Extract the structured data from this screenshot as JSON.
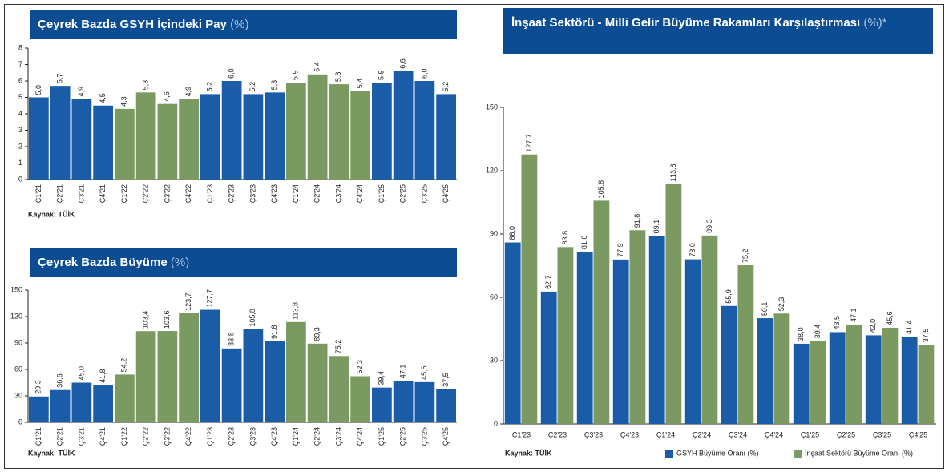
{
  "chart_data": [
    {
      "type": "bar",
      "title": "Çeyrek Bazda GSYH İçindeki Pay",
      "unit": "(%)",
      "categories": [
        "Ç1'21",
        "Ç2'21",
        "Ç3'21",
        "Ç4'21",
        "Ç1'22",
        "Ç2'22",
        "Ç3'22",
        "Ç4'22",
        "Ç1'23",
        "Ç2'23",
        "Ç3'23",
        "Ç4'23",
        "Ç1'24",
        "Ç2'24",
        "Ç3'24",
        "Ç4'24",
        "Ç1'25",
        "Ç2'25",
        "Ç3'25",
        "Ç4'25"
      ],
      "values": [
        5.0,
        5.7,
        4.9,
        4.5,
        4.3,
        5.3,
        4.6,
        4.9,
        5.2,
        6.0,
        5.2,
        5.3,
        5.9,
        6.4,
        5.8,
        5.4,
        5.9,
        6.6,
        6.0,
        5.2
      ],
      "value_labels": [
        "5,0",
        "5,7",
        "4,9",
        "4,5",
        "4,3",
        "5,3",
        "4,6",
        "4,9",
        "5,2",
        "6,0",
        "5,2",
        "5,3",
        "5,9",
        "6,4",
        "5,8",
        "5,4",
        "5,9",
        "6,6",
        "6,0",
        "5,2"
      ],
      "colors": [
        "#1b5ca8",
        "#1b5ca8",
        "#1b5ca8",
        "#1b5ca8",
        "#7a9a62",
        "#7a9a62",
        "#7a9a62",
        "#7a9a62",
        "#1b5ca8",
        "#1b5ca8",
        "#1b5ca8",
        "#1b5ca8",
        "#7a9a62",
        "#7a9a62",
        "#7a9a62",
        "#7a9a62",
        "#1b5ca8",
        "#1b5ca8",
        "#1b5ca8",
        "#1b5ca8"
      ],
      "ylim": [
        0,
        8
      ],
      "yticks": [
        0,
        1,
        2,
        3,
        4,
        5,
        6,
        7,
        8
      ],
      "source": "Kaynak: TÜİK"
    },
    {
      "type": "bar",
      "title": "Çeyrek Bazda Büyüme",
      "unit": "(%)",
      "categories": [
        "Ç1'21",
        "Ç2'21",
        "Ç3'21",
        "Ç4'21",
        "Ç1'22",
        "Ç2'22",
        "Ç3'22",
        "Ç4'22",
        "Ç1'23",
        "Ç2'23",
        "Ç3'23",
        "Ç4'23",
        "Ç1'24",
        "Ç2'24",
        "Ç3'24",
        "Ç4'24",
        "Ç1'25",
        "Ç2'25",
        "Ç3'25",
        "Ç4'25"
      ],
      "values": [
        29.3,
        36.6,
        45.0,
        41.8,
        54.2,
        103.4,
        103.6,
        123.7,
        127.7,
        83.8,
        105.8,
        91.8,
        113.8,
        89.3,
        75.2,
        52.3,
        39.4,
        47.1,
        45.6,
        37.5
      ],
      "value_labels": [
        "29,3",
        "36,6",
        "45,0",
        "41,8",
        "54,2",
        "103,4",
        "103,6",
        "123,7",
        "127,7",
        "83,8",
        "105,8",
        "91,8",
        "113,8",
        "89,3",
        "75,2",
        "52,3",
        "39,4",
        "47,1",
        "45,6",
        "37,5"
      ],
      "colors": [
        "#1b5ca8",
        "#1b5ca8",
        "#1b5ca8",
        "#1b5ca8",
        "#7a9a62",
        "#7a9a62",
        "#7a9a62",
        "#7a9a62",
        "#1b5ca8",
        "#1b5ca8",
        "#1b5ca8",
        "#1b5ca8",
        "#7a9a62",
        "#7a9a62",
        "#7a9a62",
        "#7a9a62",
        "#1b5ca8",
        "#1b5ca8",
        "#1b5ca8",
        "#1b5ca8"
      ],
      "ylim": [
        0,
        150
      ],
      "yticks": [
        0,
        30,
        60,
        90,
        120,
        150
      ],
      "source": "Kaynak: TÜİK"
    },
    {
      "type": "grouped_bar",
      "title": "İnşaat Sektörü - Milli Gelir Büyüme Rakamları Karşılaştırması",
      "unit": "(%)*",
      "categories": [
        "Ç1'23",
        "Ç2'23",
        "Ç3'23",
        "Ç4'23",
        "Ç1'24",
        "Ç2'24",
        "Ç3'24",
        "Ç4'24",
        "Ç1'25",
        "Ç2'25",
        "Ç3'25",
        "Ç4'25"
      ],
      "series": [
        {
          "name": "GSYH Büyüme Oranı (%)",
          "color": "#1b5ca8",
          "values": [
            86.0,
            62.7,
            81.6,
            77.9,
            89.1,
            78.0,
            55.9,
            50.1,
            38.0,
            43.5,
            42.0,
            41.4
          ],
          "value_labels": [
            "86,0",
            "62,7",
            "81,6",
            "77,9",
            "89,1",
            "78,0",
            "55,9",
            "50,1",
            "38,0",
            "43,5",
            "42,0",
            "41,4"
          ]
        },
        {
          "name": "İnşaat Sektörü Büyüme Oranı (%)",
          "color": "#7a9a62",
          "values": [
            127.7,
            83.8,
            105.8,
            91.8,
            113.8,
            89.3,
            75.2,
            52.3,
            39.4,
            47.1,
            45.6,
            37.5
          ],
          "value_labels": [
            "127,7",
            "83,8",
            "105,8",
            "91,8",
            "113,8",
            "89,3",
            "75,2",
            "52,3",
            "39,4",
            "47,1",
            "45,6",
            "37,5"
          ]
        }
      ],
      "ylim": [
        0,
        150
      ],
      "yticks": [
        0,
        30,
        60,
        90,
        120,
        150
      ],
      "legend": "bottom-right",
      "source": "Kaynak: TÜİK"
    }
  ]
}
